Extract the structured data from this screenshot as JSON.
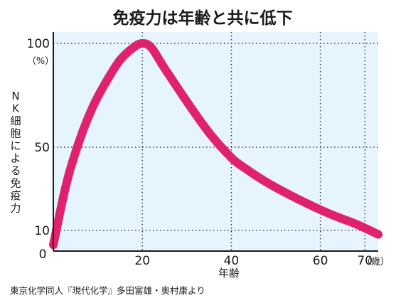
{
  "chart_data": {
    "type": "line",
    "title": "免疫力は年齢と共に低下",
    "xlabel": "年齢",
    "x_unit": "（歳）",
    "ylabel": "NK細胞による免疫力",
    "y_unit": "（%）",
    "xlim": [
      0,
      73
    ],
    "ylim": [
      0,
      100
    ],
    "x_ticks": [
      20,
      40,
      60,
      70
    ],
    "y_ticks": [
      10,
      50,
      100
    ],
    "origin_label": "0",
    "grid": true,
    "background_color": "#e6f4fd",
    "series": [
      {
        "color": "#e0226e",
        "x": [
          0,
          3,
          6,
          9,
          12,
          15,
          18,
          20,
          22,
          25,
          30,
          35,
          40,
          43,
          48,
          55,
          62,
          68,
          73
        ],
        "y": [
          3,
          33,
          54,
          70,
          82,
          92,
          98,
          100,
          98,
          88,
          72,
          57,
          45,
          40,
          33,
          25,
          18,
          13,
          8
        ]
      }
    ]
  },
  "source": "東京化学同人『現代化学』多田富雄・奥村康より"
}
